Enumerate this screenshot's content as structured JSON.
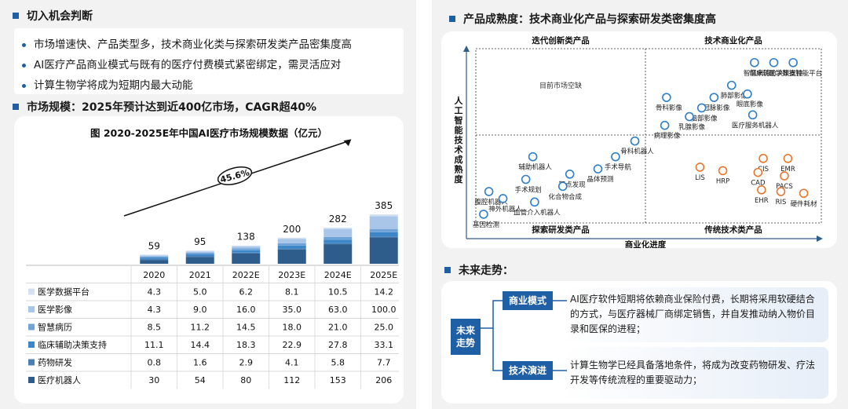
{
  "left": {
    "section1_title": "切入机会判断",
    "bullets": [
      "市场增速快、产品类型多，技术商业化类与探索研发类产品密集度高",
      "AI医疗产品商业模式与既有的医疗付费模式紧密绑定，需灵活应对",
      "计算生物学将成为短期内最大动能"
    ],
    "section2_title": "市场规模：2025年预计达到近400亿市场，CAGR超40%"
  },
  "chart_data": [
    {
      "type": "bar",
      "title": "图 2020-2025E年中国AI医疗市场规模数据（亿元）",
      "categories": [
        "2020",
        "2021",
        "2022E",
        "2023E",
        "2024E",
        "2025E"
      ],
      "totals": [
        59,
        95,
        138,
        200,
        282,
        385
      ],
      "cagr_label": "45.6%",
      "series": [
        {
          "name": "医疗机器人",
          "values": [
            30,
            54,
            80,
            112,
            153,
            206
          ],
          "color": "#2e5d8c"
        },
        {
          "name": "药物研发",
          "values": [
            0.8,
            1.6,
            2.9,
            4.1,
            5.8,
            7.7
          ],
          "color": "#4a7fb5"
        },
        {
          "name": "临床辅助决策支持",
          "values": [
            11.1,
            14.4,
            18.3,
            22.9,
            27.8,
            33.1
          ],
          "color": "#3d86c8"
        },
        {
          "name": "智慧病历",
          "values": [
            8.5,
            11.2,
            14.5,
            18.0,
            21.0,
            25.0
          ],
          "color": "#6fa3d8"
        },
        {
          "name": "医学影像",
          "values": [
            4.3,
            9.0,
            16.0,
            35.0,
            63.0,
            100.0
          ],
          "color": "#a9c6e8"
        },
        {
          "name": "医学数据平台",
          "values": [
            4.3,
            5.0,
            6.2,
            8.1,
            10.5,
            14.2
          ],
          "color": "#d3e2f3"
        }
      ],
      "table_rows": [
        {
          "name": "医学数据平台",
          "values": [
            "4.3",
            "5.0",
            "6.2",
            "8.1",
            "10.5",
            "14.2"
          ],
          "color": "#d3e2f3"
        },
        {
          "name": "医学影像",
          "values": [
            "4.3",
            "9.0",
            "16.0",
            "35.0",
            "63.0",
            "100.0"
          ],
          "color": "#a9c6e8"
        },
        {
          "name": "智慧病历",
          "values": [
            "8.5",
            "11.2",
            "14.5",
            "18.0",
            "21.0",
            "25.0"
          ],
          "color": "#6fa3d8"
        },
        {
          "name": "临床辅助决策支持",
          "values": [
            "11.1",
            "14.4",
            "18.3",
            "22.9",
            "27.8",
            "33.1"
          ],
          "color": "#3d86c8"
        },
        {
          "name": "药物研发",
          "values": [
            "0.8",
            "1.6",
            "2.9",
            "4.1",
            "5.8",
            "7.7"
          ],
          "color": "#4a7fb5"
        },
        {
          "name": "医疗机器人",
          "values": [
            "30",
            "54",
            "80",
            "112",
            "153",
            "206"
          ],
          "color": "#2e5d8c"
        }
      ]
    },
    {
      "type": "scatter",
      "title": "产品成熟度：技术商业化产品与探索研发类密集度高",
      "xlabel": "商业化进度",
      "ylabel": "人工智能技术成熟度",
      "quadrants": {
        "top_left": "迭代创新类产品",
        "top_right": "技术商业化产品",
        "bottom_left": "探索研发类产品",
        "bottom_right": "传统技术类产品"
      },
      "note": "目前市场空缺",
      "blue_points": [
        {
          "label": "智慧病历",
          "x": 0.62,
          "y": 0.92
        },
        {
          "label": "临床辅助决策支持",
          "x": 0.73,
          "y": 0.92
        },
        {
          "label": "医学数据智能平台",
          "x": 0.84,
          "y": 0.92
        },
        {
          "label": "肺部影像",
          "x": 0.49,
          "y": 0.79
        },
        {
          "label": "眼底影像",
          "x": 0.58,
          "y": 0.74
        },
        {
          "label": "骨科影像",
          "x": 0.12,
          "y": 0.72
        },
        {
          "label": "冠脉影像",
          "x": 0.39,
          "y": 0.72
        },
        {
          "label": "脑部影像",
          "x": 0.32,
          "y": 0.66
        },
        {
          "label": "乳腺影像",
          "x": 0.25,
          "y": 0.61
        },
        {
          "label": "医疗服务机器人",
          "x": 0.61,
          "y": 0.62
        },
        {
          "label": "病理影像",
          "x": 0.11,
          "y": 0.56
        },
        {
          "label": "骨科机器人",
          "x": -0.06,
          "y": 0.47
        },
        {
          "label": "手术导航",
          "x": -0.17,
          "y": 0.38
        },
        {
          "label": "辅助机器人",
          "x": -0.64,
          "y": 0.38
        },
        {
          "label": "晶体预测",
          "x": -0.27,
          "y": 0.31
        },
        {
          "label": "靶点发现",
          "x": -0.43,
          "y": 0.28
        },
        {
          "label": "手术规划",
          "x": -0.68,
          "y": 0.25
        },
        {
          "label": "化合物合成",
          "x": -0.47,
          "y": 0.21
        },
        {
          "label": "腹腔机器人",
          "x": -0.89,
          "y": 0.18
        },
        {
          "label": "神外机器人",
          "x": -0.81,
          "y": 0.14
        },
        {
          "label": "血管介入机器人",
          "x": -0.63,
          "y": 0.12
        },
        {
          "label": "基因检测",
          "x": -0.92,
          "y": 0.05
        }
      ],
      "orange_points": [
        {
          "label": "LIS",
          "x": 0.31,
          "y": 0.32
        },
        {
          "label": "HRP",
          "x": 0.44,
          "y": 0.3
        },
        {
          "label": "CIS",
          "x": 0.67,
          "y": 0.37
        },
        {
          "label": "EMR",
          "x": 0.81,
          "y": 0.37
        },
        {
          "label": "CAD",
          "x": 0.64,
          "y": 0.29
        },
        {
          "label": "PACS",
          "x": 0.79,
          "y": 0.27
        },
        {
          "label": "EHR",
          "x": 0.66,
          "y": 0.19
        },
        {
          "label": "RIS",
          "x": 0.77,
          "y": 0.18
        },
        {
          "label": "硬件耗材",
          "x": 0.9,
          "y": 0.17
        }
      ]
    }
  ],
  "right": {
    "section1_title": "产品成熟度：技术商业化产品与探索研发类密集度高",
    "section2_title": "未来走势：",
    "future_label": "未来走势",
    "items": [
      {
        "label": "商业模式",
        "text": "AI医疗软件短期将依赖商业保险付费，长期将采用软硬结合的方式，与医疗器械厂商绑定销售，并自发推动纳入物价目录和医保的进程；"
      },
      {
        "label": "技术演进",
        "text": "计算生物学已经具备落地条件，将成为改变药物研发、疗法开发等传统流程的重要驱动力；"
      }
    ]
  }
}
